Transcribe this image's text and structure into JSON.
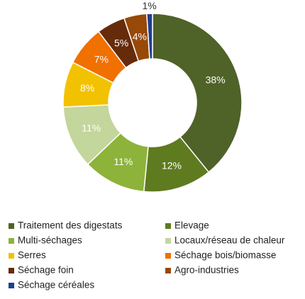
{
  "chart_data": {
    "type": "donut",
    "categories": [
      "Traitement des digestats",
      "Elevage",
      "Multi-séchages",
      "Locaux/réseau de chaleur",
      "Serres",
      "Séchage bois/biomasse",
      "Séchage foin",
      "Agro-industries",
      "Séchage céréales"
    ],
    "values": [
      38,
      12,
      11,
      11,
      8,
      7,
      5,
      4,
      1
    ],
    "value_labels": [
      "38%",
      "12%",
      "11%",
      "11%",
      "8%",
      "7%",
      "5%",
      "4%",
      "1%"
    ],
    "colors": [
      "#4f6228",
      "#5f7b1f",
      "#8db33a",
      "#c3d69b",
      "#f2c200",
      "#f07000",
      "#662b0b",
      "#984807",
      "#1f3f8f"
    ],
    "legend": "bottom"
  }
}
